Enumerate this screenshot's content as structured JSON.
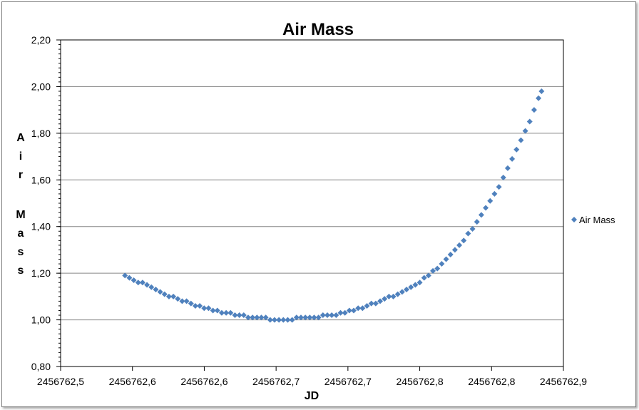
{
  "chart_data": {
    "type": "scatter",
    "title": "Air Mass",
    "xlabel": "JD",
    "ylabel": "Air Mass",
    "xlim": [
      2456762.5,
      2456762.9
    ],
    "ylim": [
      0.8,
      2.2
    ],
    "x_tick_labels": [
      "2456762,5",
      "2456762,6",
      "2456762,6",
      "2456762,7",
      "2456762,7",
      "2456762,8",
      "2456762,8",
      "2456762,9"
    ],
    "y_tick_labels": [
      "0,80",
      "1,00",
      "1,20",
      "1,40",
      "1,60",
      "1,80",
      "2,00",
      "2,20"
    ],
    "grid": "horizontal major gridlines",
    "legend": "right",
    "series": [
      {
        "name": "Air Mass",
        "color": "#4f81bd",
        "marker": "diamond",
        "x": [
          2456762.5512,
          2456762.5547,
          2456762.5582,
          2456762.5617,
          2456762.5652,
          2456762.5687,
          2456762.5722,
          2456762.5757,
          2456762.5792,
          2456762.5827,
          2456762.5862,
          2456762.5897,
          2456762.5932,
          2456762.5967,
          2456762.6002,
          2456762.6037,
          2456762.6072,
          2456762.6107,
          2456762.6142,
          2456762.6177,
          2456762.6212,
          2456762.6247,
          2456762.6282,
          2456762.6317,
          2456762.6352,
          2456762.6387,
          2456762.6422,
          2456762.6457,
          2456762.6492,
          2456762.6527,
          2456762.6562,
          2456762.6597,
          2456762.6632,
          2456762.6667,
          2456762.6702,
          2456762.6737,
          2456762.6772,
          2456762.6807,
          2456762.6842,
          2456762.6877,
          2456762.6912,
          2456762.6947,
          2456762.6982,
          2456762.7017,
          2456762.7052,
          2456762.7087,
          2456762.7122,
          2456762.7157,
          2456762.7192,
          2456762.7227,
          2456762.7262,
          2456762.7297,
          2456762.7332,
          2456762.7367,
          2456762.7402,
          2456762.7437,
          2456762.7472,
          2456762.7507,
          2456762.7542,
          2456762.7577,
          2456762.7612,
          2456762.7647,
          2456762.7682,
          2456762.7717,
          2456762.7752,
          2456762.7787,
          2456762.7822,
          2456762.7857,
          2456762.7892,
          2456762.7927,
          2456762.7962,
          2456762.7997,
          2456762.8032,
          2456762.8067,
          2456762.8102,
          2456762.8137,
          2456762.8172,
          2456762.8207,
          2456762.8242,
          2456762.8277,
          2456762.8312,
          2456762.8347,
          2456762.8382,
          2456762.8417,
          2456762.8452,
          2456762.8487,
          2456762.8522,
          2456762.8557,
          2456762.8592,
          2456762.8627,
          2456762.8662,
          2456762.8697,
          2456762.8732,
          2456762.8767,
          2456762.8802,
          2456762.8826
        ],
        "y": [
          1.19,
          1.18,
          1.17,
          1.16,
          1.16,
          1.15,
          1.14,
          1.13,
          1.12,
          1.11,
          1.1,
          1.1,
          1.09,
          1.08,
          1.08,
          1.07,
          1.06,
          1.06,
          1.05,
          1.05,
          1.04,
          1.04,
          1.03,
          1.03,
          1.03,
          1.02,
          1.02,
          1.02,
          1.01,
          1.01,
          1.01,
          1.01,
          1.01,
          1.0,
          1.0,
          1.0,
          1.0,
          1.0,
          1.0,
          1.01,
          1.01,
          1.01,
          1.01,
          1.01,
          1.01,
          1.02,
          1.02,
          1.02,
          1.02,
          1.03,
          1.03,
          1.04,
          1.04,
          1.05,
          1.05,
          1.06,
          1.07,
          1.07,
          1.08,
          1.09,
          1.1,
          1.1,
          1.11,
          1.12,
          1.13,
          1.14,
          1.15,
          1.16,
          1.18,
          1.19,
          1.21,
          1.22,
          1.24,
          1.26,
          1.28,
          1.3,
          1.32,
          1.34,
          1.37,
          1.39,
          1.42,
          1.45,
          1.48,
          1.51,
          1.54,
          1.57,
          1.61,
          1.65,
          1.69,
          1.73,
          1.77,
          1.81,
          1.85,
          1.9,
          1.95,
          1.98
        ]
      }
    ]
  }
}
